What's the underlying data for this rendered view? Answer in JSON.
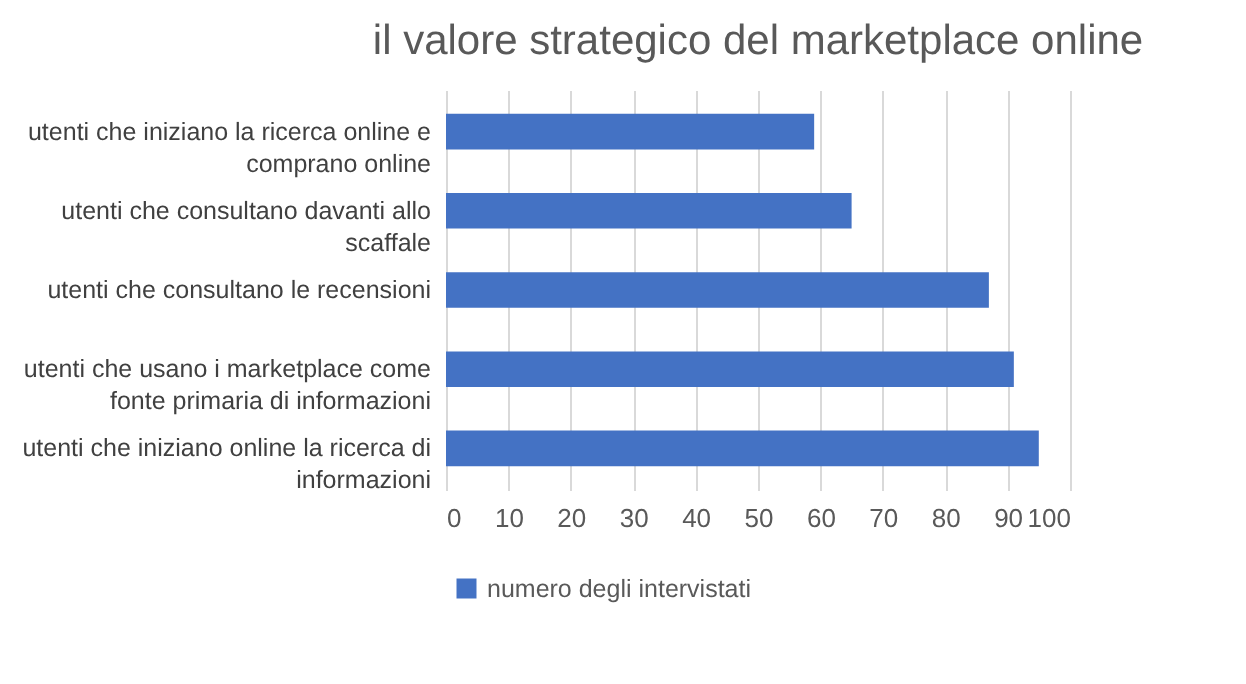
{
  "chart_data": {
    "type": "bar",
    "orientation": "horizontal",
    "title": "il valore strategico del marketplace online",
    "categories": [
      "utenti che iniziano la ricerca online e comprano online",
      "utenti che consultano davanti allo scaffale",
      "utenti che consultano le recensioni",
      "utenti che usano i marketplace come fonte primaria di informazioni",
      "utenti che iniziano online la ricerca di informazioni"
    ],
    "series": [
      {
        "name": "numero degli intervistati",
        "color": "#4472c4",
        "values": [
          59,
          65,
          87,
          91,
          95
        ]
      }
    ],
    "xlim": [
      0,
      100
    ],
    "xticks": [
      0,
      10,
      20,
      30,
      40,
      50,
      60,
      70,
      80,
      90,
      100
    ],
    "grid": "x",
    "legend": "bottom"
  }
}
